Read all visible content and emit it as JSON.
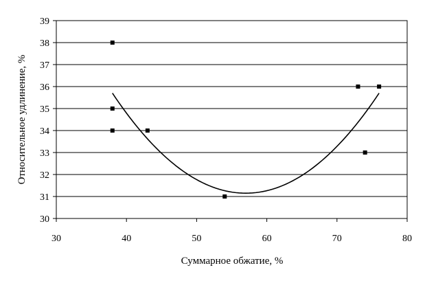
{
  "chart_data": {
    "type": "scatter",
    "xlabel": "Суммарное обжатие, %",
    "ylabel": "Относительное удлинение, %",
    "xlim": [
      30,
      80
    ],
    "ylim": [
      30,
      39
    ],
    "xticks": [
      30,
      40,
      50,
      60,
      70,
      80
    ],
    "yticks": [
      30,
      31,
      32,
      33,
      34,
      35,
      36,
      37,
      38,
      39
    ],
    "grid": "horizontal",
    "series": [
      {
        "points": [
          {
            "x": 38,
            "y": 38
          },
          {
            "x": 38,
            "y": 35
          },
          {
            "x": 38,
            "y": 34
          },
          {
            "x": 43,
            "y": 34
          },
          {
            "x": 54,
            "y": 31
          },
          {
            "x": 73,
            "y": 36
          },
          {
            "x": 76,
            "y": 36
          },
          {
            "x": 74,
            "y": 33
          }
        ]
      }
    ],
    "trendline": {
      "type": "polynomial",
      "degree": 2,
      "x_range": [
        38,
        76
      ],
      "points": [
        {
          "x": 38,
          "y": 35.7
        },
        {
          "x": 57,
          "y": 31.15
        },
        {
          "x": 76,
          "y": 35.7
        }
      ]
    },
    "colors": {
      "marker": "#000000",
      "line": "#000000",
      "grid": "#000000"
    }
  }
}
